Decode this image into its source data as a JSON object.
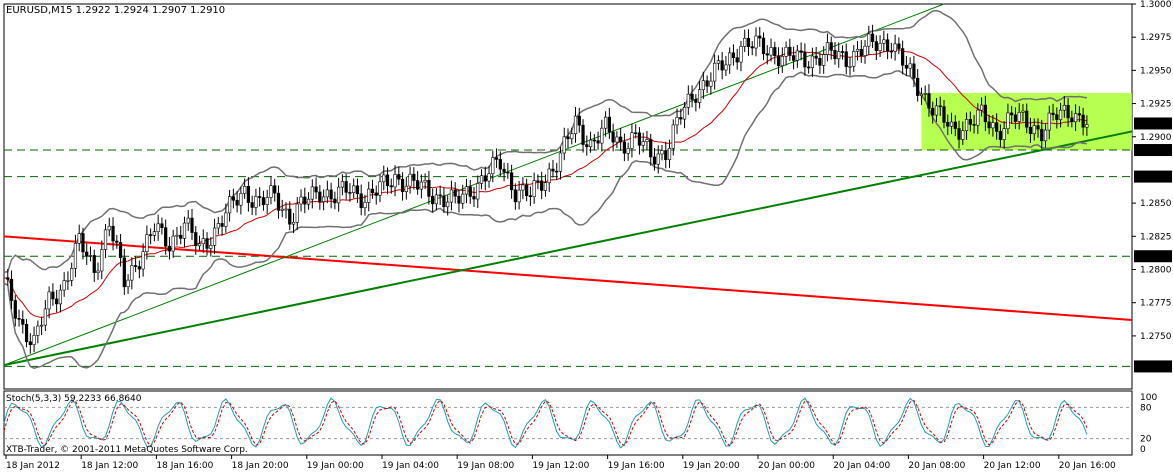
{
  "chart_data": [
    {
      "type": "candlestick",
      "symbol_header": "EURUSD,M15  1.2922 1.2924 1.2907 1.2910",
      "ylim": [
        1.271,
        1.3
      ],
      "y_ticks": [
        "1.3000",
        "1.2975",
        "1.2950",
        "1.2925",
        "1.2900",
        "1.2850",
        "1.2825",
        "1.2800",
        "1.2775",
        "1.2750"
      ],
      "x_ticks": [
        "18 Jan 2012",
        "18 Jan 12:00",
        "18 Jan 16:00",
        "18 Jan 20:00",
        "19 Jan 00:00",
        "19 Jan 04:00",
        "19 Jan 08:00",
        "19 Jan 12:00",
        "19 Jan 16:00",
        "19 Jan 20:00",
        "20 Jan 00:00",
        "20 Jan 04:00",
        "20 Jan 08:00",
        "20 Jan 12:00",
        "20 Jan 16:00"
      ],
      "price_path": [
        [
          0,
          1.279
        ],
        [
          4,
          1.2762
        ],
        [
          8,
          1.2745
        ],
        [
          12,
          1.2775
        ],
        [
          16,
          1.279
        ],
        [
          20,
          1.282
        ],
        [
          24,
          1.28
        ],
        [
          28,
          1.2835
        ],
        [
          32,
          1.279
        ],
        [
          36,
          1.281
        ],
        [
          40,
          1.283
        ],
        [
          44,
          1.282
        ],
        [
          48,
          1.2835
        ],
        [
          52,
          1.2815
        ],
        [
          56,
          1.283
        ],
        [
          60,
          1.2845
        ],
        [
          64,
          1.286
        ],
        [
          68,
          1.285
        ],
        [
          72,
          1.2855
        ],
        [
          76,
          1.284
        ],
        [
          80,
          1.285
        ],
        [
          84,
          1.286
        ],
        [
          88,
          1.2855
        ],
        [
          92,
          1.286
        ],
        [
          96,
          1.2855
        ],
        [
          100,
          1.286
        ],
        [
          104,
          1.287
        ],
        [
          108,
          1.2865
        ],
        [
          112,
          1.286
        ],
        [
          116,
          1.2855
        ],
        [
          120,
          1.285
        ],
        [
          124,
          1.286
        ],
        [
          128,
          1.287
        ],
        [
          132,
          1.288
        ],
        [
          136,
          1.286
        ],
        [
          140,
          1.2855
        ],
        [
          144,
          1.287
        ],
        [
          148,
          1.2885
        ],
        [
          152,
          1.291
        ],
        [
          156,
          1.2895
        ],
        [
          160,
          1.2905
        ],
        [
          164,
          1.2895
        ],
        [
          168,
          1.29
        ],
        [
          172,
          1.2885
        ],
        [
          176,
          1.289
        ],
        [
          180,
          1.2915
        ],
        [
          184,
          1.2935
        ],
        [
          188,
          1.2945
        ],
        [
          192,
          1.2955
        ],
        [
          196,
          1.297
        ],
        [
          200,
          1.2968
        ],
        [
          204,
          1.2965
        ],
        [
          208,
          1.296
        ],
        [
          212,
          1.2958
        ],
        [
          216,
          1.296
        ],
        [
          220,
          1.2962
        ],
        [
          224,
          1.296
        ],
        [
          228,
          1.2965
        ],
        [
          232,
          1.297
        ],
        [
          236,
          1.2972
        ],
        [
          240,
          1.295
        ],
        [
          244,
          1.2935
        ],
        [
          248,
          1.2918
        ],
        [
          252,
          1.2905
        ],
        [
          256,
          1.291
        ],
        [
          260,
          1.2915
        ],
        [
          264,
          1.2905
        ],
        [
          268,
          1.2915
        ],
        [
          272,
          1.291
        ],
        [
          276,
          1.2905
        ],
        [
          280,
          1.2915
        ],
        [
          284,
          1.292
        ],
        [
          288,
          1.291
        ]
      ],
      "horizontal_levels": [
        {
          "label": "1.2910",
          "value": 1.291,
          "style": "current-price"
        },
        {
          "label": "1.2890",
          "value": 1.289,
          "style": "dashed"
        },
        {
          "label": "1.2870",
          "value": 1.287,
          "style": "dashed"
        },
        {
          "label": "1.2810",
          "value": 1.281,
          "style": "dashed"
        },
        {
          "label": "1.2727",
          "value": 1.2727,
          "style": "dashed"
        }
      ],
      "highlight_zone": {
        "from": 1.289,
        "to": 1.2933,
        "start_index": 244,
        "color": "#aaff33"
      },
      "trendlines": [
        {
          "color": "#ff0000",
          "from": [
            0,
            1.2825
          ],
          "to": [
            300,
            1.2762
          ]
        },
        {
          "color": "#008000",
          "from": [
            0,
            1.2728
          ],
          "to": [
            300,
            1.2904
          ]
        },
        {
          "color": "#008000",
          "thin": true,
          "from": [
            0,
            1.2728
          ],
          "to": [
            250,
            1.3
          ]
        }
      ],
      "colors": {
        "background": "#ffffff",
        "grid": "#c8c8c8",
        "candle_bull": "#ffffff",
        "candle_bear": "#000000",
        "bands": "#707070",
        "ma": "#cc0000",
        "stoch_main": "#1ea0b4",
        "stoch_signal": "#cc0000"
      }
    },
    {
      "type": "line",
      "title": "Stoch(5,3,3) 59.2233 66.8640",
      "y_ticks": [
        "100",
        "80",
        "20",
        "0"
      ],
      "ylim": [
        0,
        100
      ],
      "levels": [
        80,
        20
      ]
    }
  ],
  "footer": {
    "copyright": "XTB-Trader, © 2001-2011 MetaQuotes Software Corp."
  }
}
